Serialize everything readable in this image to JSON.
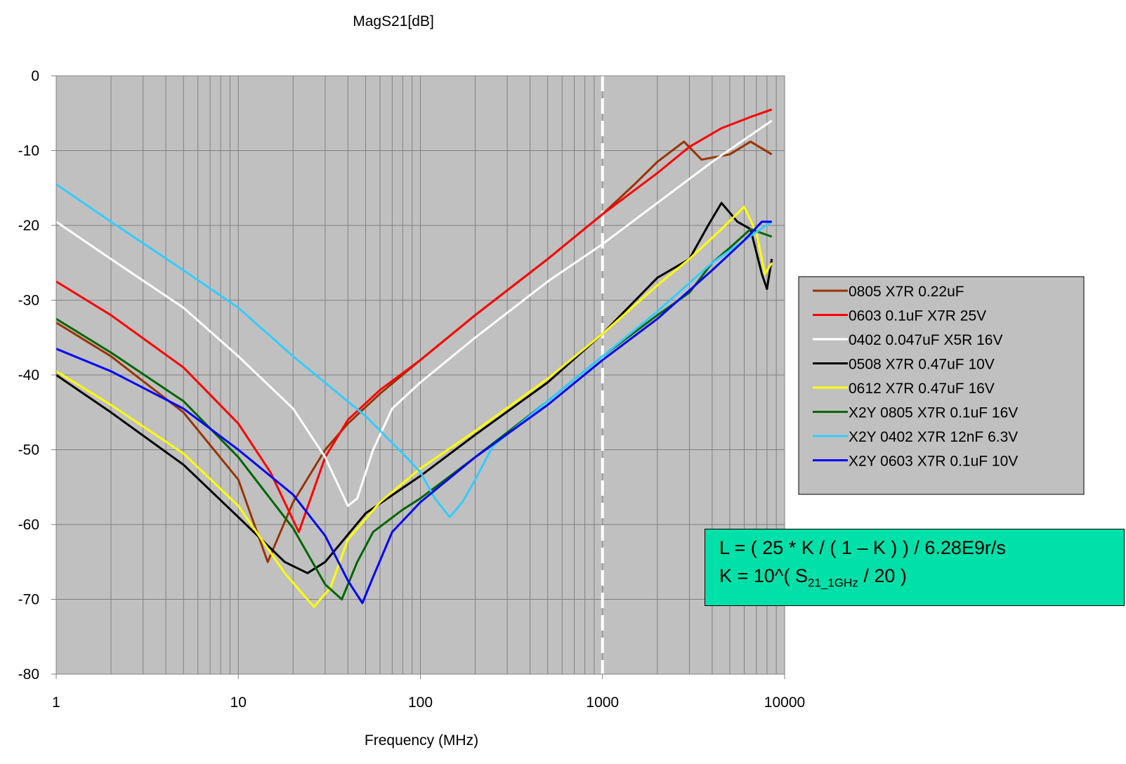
{
  "chart_data": {
    "type": "line",
    "title": "MagS21[dB]",
    "xlabel": "Frequency (MHz)",
    "ylabel": "",
    "x_scale": "log",
    "xlim": [
      1,
      10000
    ],
    "ylim": [
      -80,
      0
    ],
    "x_ticks": [
      "1",
      "10",
      "100",
      "1000",
      "10000"
    ],
    "y_ticks": [
      "0",
      "-10",
      "-20",
      "-30",
      "-40",
      "-50",
      "-60",
      "-70",
      "-80"
    ],
    "grid": true,
    "plot_background": "#c0c0c0",
    "legend_position": "right",
    "reference_line": {
      "x": 1000,
      "style": "dashed",
      "color": "#ffffff"
    },
    "series": [
      {
        "name": "0805 X7R 0.22uF",
        "color": "#993300",
        "x": [
          1,
          2,
          5,
          10,
          14.5,
          20,
          30,
          40,
          60,
          100,
          200,
          500,
          1000,
          1500,
          2000,
          2800,
          3500,
          5000,
          6500,
          8500
        ],
        "y": [
          -33,
          -37.5,
          -45,
          -54,
          -65,
          -57,
          -50,
          -46.5,
          -42.5,
          -38,
          -32,
          -24.5,
          -18.5,
          -14.5,
          -11.5,
          -8.8,
          -11.2,
          -10.5,
          -8.8,
          -10.5
        ]
      },
      {
        "name": "0603 0.1uF X7R 25V",
        "color": "#ff0000",
        "x": [
          1,
          2,
          5,
          10,
          15,
          21.5,
          30,
          40,
          60,
          100,
          200,
          500,
          1000,
          2000,
          3000,
          4500,
          6500,
          8500
        ],
        "y": [
          -27.5,
          -32,
          -39,
          -46.5,
          -53,
          -61,
          -51,
          -46,
          -42,
          -38,
          -32,
          -24.5,
          -18.5,
          -13,
          -9.5,
          -7,
          -5.5,
          -4.5
        ]
      },
      {
        "name": "0402 0.047uF X5R 16V",
        "color": "#ffffff",
        "x": [
          1,
          2,
          5,
          10,
          20,
          30,
          35,
          40,
          45,
          55,
          70,
          100,
          200,
          500,
          1000,
          2000,
          4000,
          8500
        ],
        "y": [
          -19.5,
          -24.5,
          -31,
          -37.5,
          -44.5,
          -51,
          -54.5,
          -57.5,
          -56.5,
          -50,
          -44.5,
          -41,
          -35,
          -27.5,
          -22.5,
          -17,
          -11.5,
          -6
        ]
      },
      {
        "name": "0508 X7R 0.47uF 10V",
        "color": "#000000",
        "x": [
          1,
          2,
          5,
          10,
          18,
          24,
          30,
          50,
          100,
          200,
          500,
          1000,
          2000,
          3000,
          3800,
          4500,
          5500,
          6500,
          7500,
          8000,
          8500
        ],
        "y": [
          -40,
          -45,
          -52,
          -59,
          -65,
          -66.5,
          -65,
          -58.5,
          -53.5,
          -48,
          -41,
          -34.5,
          -27,
          -24.5,
          -20,
          -17,
          -19.5,
          -20.5,
          -26.5,
          -28.5,
          -24.5
        ]
      },
      {
        "name": "0612 X7R 0.47uF 16V",
        "color": "#ffff00",
        "x": [
          1,
          2,
          5,
          10,
          18,
          26,
          32,
          40,
          60,
          100,
          200,
          500,
          1000,
          2000,
          3000,
          4500,
          6000,
          7000,
          7800,
          8500
        ],
        "y": [
          -39.5,
          -44,
          -50.5,
          -57.5,
          -66.5,
          -71,
          -68.5,
          -62,
          -57,
          -52.5,
          -47.5,
          -40.5,
          -34.5,
          -28,
          -24.5,
          -20.5,
          -17.5,
          -21,
          -26.5,
          -25
        ]
      },
      {
        "name": "X2Y 0805 X7R 0.1uF 16V",
        "color": "#006600",
        "x": [
          1,
          2,
          5,
          10,
          20,
          30,
          37,
          45,
          55,
          80,
          100,
          200,
          500,
          1000,
          2000,
          3000,
          4000,
          5000,
          6500,
          8500
        ],
        "y": [
          -32.5,
          -37,
          -43.5,
          -51,
          -60.5,
          -68,
          -70,
          -65,
          -61,
          -58,
          -56.5,
          -51,
          -43.5,
          -37.5,
          -32,
          -29,
          -25,
          -23,
          -20.5,
          -21.5
        ]
      },
      {
        "name": "X2Y 0402 X7R 12nF 6.3V",
        "color": "#33ccff",
        "x": [
          1,
          2,
          5,
          10,
          20,
          50,
          80,
          100,
          120,
          145,
          170,
          200,
          250,
          500,
          1000,
          2000,
          4000,
          6000,
          8500
        ],
        "y": [
          -14.5,
          -19.5,
          -26,
          -31,
          -37.5,
          -45.5,
          -50.5,
          -53,
          -56.5,
          -59,
          -57,
          -54,
          -49.5,
          -43.5,
          -37.5,
          -31.5,
          -25,
          -22,
          -19.5
        ]
      },
      {
        "name": "X2Y 0603 X7R 0.1uF 10V",
        "color": "#0000ff",
        "x": [
          1,
          2,
          5,
          10,
          20,
          30,
          40,
          48,
          55,
          70,
          100,
          200,
          500,
          1000,
          2000,
          4000,
          6000,
          7500,
          8500
        ],
        "y": [
          -36.5,
          -39.5,
          -44.5,
          -50,
          -56,
          -61.5,
          -67.5,
          -70.5,
          -67,
          -61,
          -57,
          -51,
          -44,
          -38,
          -32.5,
          -26,
          -22,
          -19.5,
          -19.5
        ]
      }
    ]
  },
  "formula": {
    "line1": "L = ( 25 * K / ( 1 – K ) ) / 6.28E9r/s",
    "line2_prefix": "K = 10^( S",
    "line2_sub": "21_1GHz",
    "line2_suffix": " / 20 )"
  }
}
